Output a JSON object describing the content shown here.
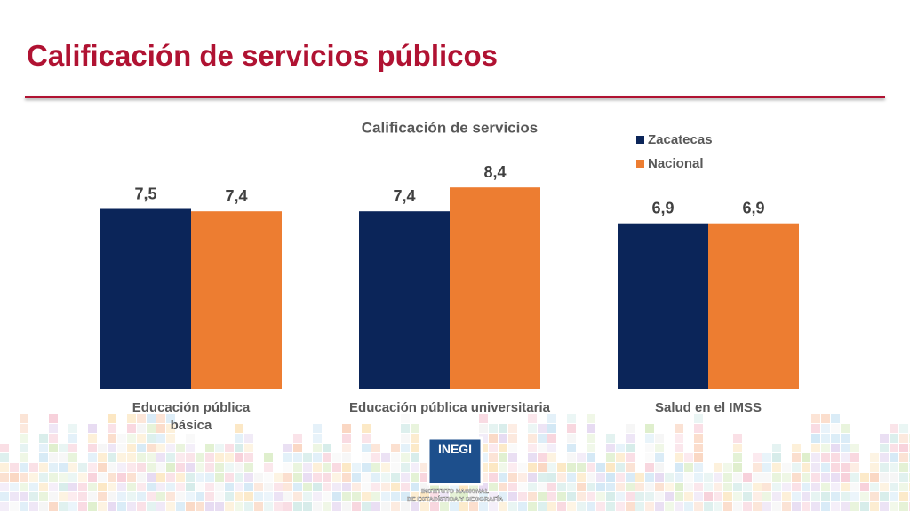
{
  "slide": {
    "title": "Calificación de servicios públicos"
  },
  "logo": {
    "name": "INEGI",
    "subtitle_1": "INSTITUTO NACIONAL",
    "subtitle_2": "DE ESTADÍSTICA Y GEOGRAFÍA"
  },
  "chart_data": {
    "type": "bar",
    "title": "Calificación de servicios",
    "categories": [
      "Educación pública básica",
      "Educación pública universitaria",
      "Salud en el IMSS"
    ],
    "series": [
      {
        "name": "Zacatecas",
        "color": "#0b2559",
        "values": [
          7.5,
          7.4,
          6.9
        ],
        "value_labels": [
          "7,5",
          "7,4",
          "6,9"
        ]
      },
      {
        "name": "Nacional",
        "color": "#ed7d31",
        "values": [
          7.4,
          8.4,
          6.9
        ],
        "value_labels": [
          "7,4",
          "8,4",
          "6,9"
        ]
      }
    ],
    "ylim": [
      0,
      10
    ],
    "legend": "top-right"
  }
}
